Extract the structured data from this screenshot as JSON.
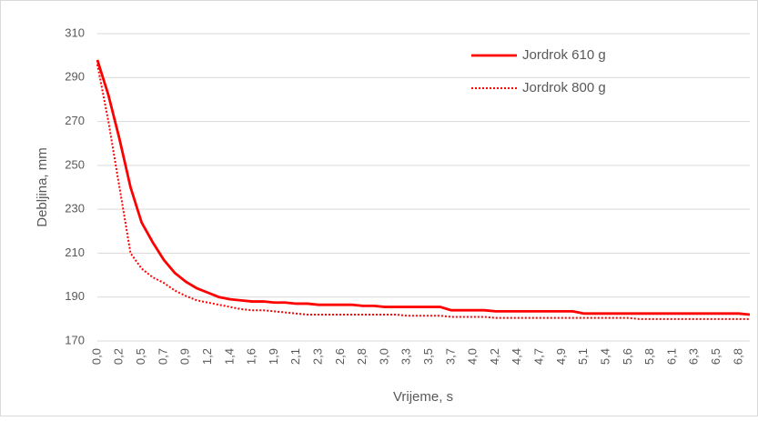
{
  "chart_data": {
    "type": "line",
    "categories": [
      "0,0",
      null,
      "0,2",
      null,
      "0,5",
      null,
      "0,7",
      null,
      "0,9",
      null,
      "1,2",
      null,
      "1,4",
      null,
      "1,6",
      null,
      "1,9",
      null,
      "2,1",
      null,
      "2,3",
      null,
      "2,6",
      null,
      "2,8",
      null,
      "3,0",
      null,
      "3,3",
      null,
      "3,5",
      null,
      "3,7",
      null,
      "4,0",
      null,
      "4,2",
      null,
      "4,4",
      null,
      "4,7",
      null,
      "4,9",
      null,
      "5,1",
      null,
      "5,4",
      null,
      "5,6",
      null,
      "5,8",
      null,
      "6,1",
      null,
      "6,3",
      null,
      "6,5",
      null,
      "6,8",
      null
    ],
    "series": [
      {
        "name": "Jordrok 610 g",
        "color": "#ff0000",
        "style": "solid",
        "values": [
          298,
          282,
          262,
          240,
          224,
          215,
          207,
          201,
          197,
          194,
          192,
          190,
          189,
          188.5,
          188,
          188,
          187.5,
          187.5,
          187,
          187,
          186.5,
          186.5,
          186.5,
          186.5,
          186,
          186,
          185.5,
          185.5,
          185.5,
          185.5,
          185.5,
          185.5,
          184,
          184,
          184,
          184,
          183.5,
          183.5,
          183.5,
          183.5,
          183.5,
          183.5,
          183.5,
          183.5,
          182.5,
          182.5,
          182.5,
          182.5,
          182.5,
          182.5,
          182.5,
          182.5,
          182.5,
          182.5,
          182.5,
          182.5,
          182.5,
          182.5,
          182.5,
          182
        ]
      },
      {
        "name": "Jordrok 800 g",
        "color": "#ff0000",
        "style": "dotted",
        "values": [
          296,
          270,
          240,
          210,
          203,
          199,
          196.5,
          193,
          190.5,
          188.5,
          187.5,
          186.5,
          185.5,
          184.5,
          184,
          184,
          183.5,
          183,
          182.5,
          182,
          182,
          182,
          182,
          182,
          182,
          182,
          182,
          182,
          181.5,
          181.5,
          181.5,
          181.5,
          181,
          181,
          181,
          181,
          180.5,
          180.5,
          180.5,
          180.5,
          180.5,
          180.5,
          180.5,
          180.5,
          180.5,
          180.5,
          180.5,
          180.5,
          180.5,
          180,
          180,
          180,
          180,
          180,
          180,
          180,
          180,
          180,
          180,
          180
        ]
      }
    ],
    "x_label": "Vrijeme, s",
    "y_label": "Debljina, mm",
    "ylim": [
      170,
      310
    ],
    "yticks": [
      170,
      190,
      210,
      230,
      250,
      270,
      290,
      310
    ],
    "grid": true,
    "legend": "top-right"
  }
}
